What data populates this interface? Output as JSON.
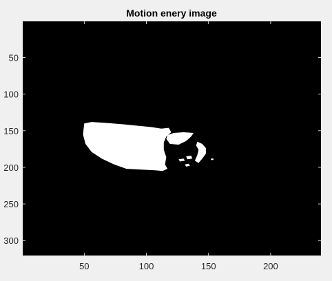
{
  "chart_data": {
    "type": "heatmap",
    "title": "Motion enery image",
    "xlabel": "",
    "ylabel": "",
    "image_width": 240,
    "image_height": 320,
    "xlim": [
      0.5,
      240.5
    ],
    "ylim": [
      320.5,
      0.5
    ],
    "y_axis_direction": "reverse",
    "colormap": "gray",
    "values_description": "binary: 0 = black background, 1 = white motion region",
    "xticks": [
      50,
      100,
      150,
      200
    ],
    "yticks": [
      50,
      100,
      150,
      200,
      250,
      300
    ],
    "xtick_labels": [
      "50",
      "100",
      "150",
      "200"
    ],
    "ytick_labels": [
      "50",
      "100",
      "150",
      "200",
      "250",
      "300"
    ],
    "grid": false,
    "regions": [
      {
        "label": "main-blob",
        "polygon": [
          [
            50,
            140
          ],
          [
            56,
            138
          ],
          [
            66,
            139
          ],
          [
            80,
            141
          ],
          [
            92,
            143
          ],
          [
            104,
            145
          ],
          [
            112,
            147
          ],
          [
            118,
            146
          ],
          [
            120,
            152
          ],
          [
            116,
            158
          ],
          [
            114,
            166
          ],
          [
            114,
            176
          ],
          [
            116,
            186
          ],
          [
            115,
            196
          ],
          [
            117,
            202
          ],
          [
            113,
            205
          ],
          [
            107,
            204
          ],
          [
            96,
            203
          ],
          [
            84,
            202
          ],
          [
            74,
            196
          ],
          [
            64,
            188
          ],
          [
            56,
            179
          ],
          [
            51,
            168
          ],
          [
            49,
            155
          ]
        ]
      },
      {
        "label": "upper-blob",
        "polygon": [
          [
            116,
            161
          ],
          [
            117,
            156
          ],
          [
            122,
            153
          ],
          [
            130,
            152
          ],
          [
            138,
            153
          ],
          [
            136,
            158
          ],
          [
            132,
            164
          ],
          [
            126,
            169
          ],
          [
            119,
            168
          ]
        ]
      },
      {
        "label": "right-edge-blob",
        "polygon": [
          [
            141,
            165
          ],
          [
            145,
            168
          ],
          [
            148,
            174
          ],
          [
            148,
            181
          ],
          [
            145,
            188
          ],
          [
            142,
            194
          ],
          [
            139,
            191
          ],
          [
            141,
            183
          ],
          [
            142,
            176
          ],
          [
            140,
            170
          ]
        ]
      },
      {
        "label": "small-spot-1",
        "polygon": [
          [
            132,
            185
          ],
          [
            136,
            184
          ],
          [
            137,
            188
          ],
          [
            133,
            189
          ]
        ]
      },
      {
        "label": "small-spot-2",
        "polygon": [
          [
            126,
            189
          ],
          [
            130,
            188
          ],
          [
            131,
            191
          ],
          [
            127,
            192
          ]
        ]
      },
      {
        "label": "small-spot-3",
        "polygon": [
          [
            131,
            196
          ],
          [
            134,
            195
          ],
          [
            135,
            198
          ],
          [
            132,
            199
          ]
        ]
      },
      {
        "label": "small-spot-4",
        "polygon": [
          [
            152,
            188
          ],
          [
            154,
            188
          ],
          [
            154,
            190
          ],
          [
            152,
            190
          ]
        ]
      }
    ]
  },
  "colors": {
    "figure_background": "#f0f0f0",
    "image_background": "#000000",
    "foreground": "#ffffff",
    "axis": "#262626"
  }
}
